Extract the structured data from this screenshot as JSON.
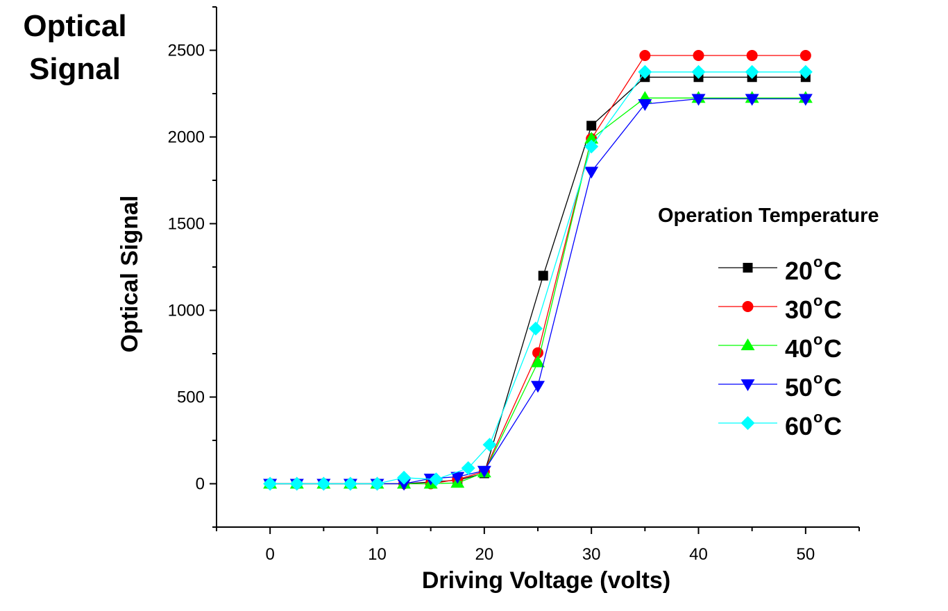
{
  "corner_label": [
    "Optical",
    "Signal"
  ],
  "chart_data": {
    "type": "line",
    "xlabel": "Driving Voltage (volts)",
    "ylabel": "Optical Signal",
    "xlim": [
      -5,
      55
    ],
    "ylim": [
      -250,
      2750
    ],
    "xticks": [
      0,
      10,
      20,
      30,
      40,
      50
    ],
    "yticks": [
      0,
      500,
      1000,
      1500,
      2000,
      2500
    ],
    "grid": false,
    "legend_title": "Operation Temperature",
    "legend_position": "right",
    "series": [
      {
        "name": "20",
        "unit_sup": "o",
        "unit": "C",
        "color": "#000000",
        "marker": "square",
        "x": [
          0,
          2.5,
          5,
          7.5,
          10,
          12.5,
          15,
          17.5,
          20,
          25.5,
          30,
          35,
          40,
          45,
          50
        ],
        "y": [
          0,
          0,
          0,
          0,
          0,
          0,
          10,
          20,
          60,
          1200,
          2065,
          2345,
          2345,
          2345,
          2345
        ]
      },
      {
        "name": "30",
        "unit_sup": "o",
        "unit": "C",
        "color": "#ff0000",
        "marker": "circle",
        "x": [
          0,
          2.5,
          5,
          7.5,
          10,
          12.5,
          15,
          17.5,
          20,
          25,
          30,
          35,
          40,
          45,
          50
        ],
        "y": [
          0,
          0,
          0,
          0,
          0,
          0,
          0,
          25,
          70,
          755,
          1990,
          2470,
          2470,
          2470,
          2470
        ]
      },
      {
        "name": "40",
        "unit_sup": "o",
        "unit": "C",
        "color": "#00ff00",
        "marker": "triangle-up",
        "x": [
          0,
          2.5,
          5,
          7.5,
          10,
          12.5,
          15,
          17.5,
          20,
          25,
          30,
          35,
          40,
          45,
          50
        ],
        "y": [
          0,
          0,
          0,
          0,
          0,
          0,
          0,
          5,
          65,
          700,
          1990,
          2225,
          2225,
          2225,
          2225
        ]
      },
      {
        "name": "50",
        "unit_sup": "o",
        "unit": "C",
        "color": "#0000ff",
        "marker": "triangle-down",
        "x": [
          0,
          2.5,
          5,
          7.5,
          10,
          12.5,
          15,
          17.5,
          20,
          25,
          30,
          35,
          40,
          45,
          50
        ],
        "y": [
          0,
          0,
          0,
          0,
          0,
          0,
          30,
          40,
          75,
          565,
          1800,
          2190,
          2220,
          2220,
          2220
        ]
      },
      {
        "name": "60",
        "unit_sup": "o",
        "unit": "C",
        "color": "#00ffff",
        "marker": "diamond",
        "x": [
          0,
          2.5,
          5,
          7.5,
          10,
          12.5,
          15.5,
          18.5,
          20.5,
          24.8,
          30,
          35,
          40,
          45,
          50
        ],
        "y": [
          0,
          0,
          0,
          0,
          0,
          35,
          25,
          90,
          225,
          895,
          1945,
          2375,
          2375,
          2375,
          2375
        ]
      }
    ]
  }
}
